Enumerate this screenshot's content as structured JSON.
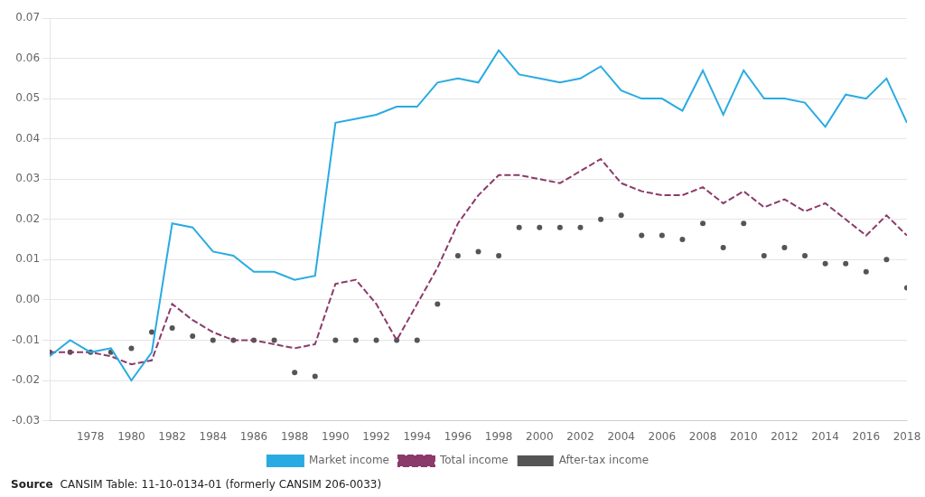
{
  "chart_data": {
    "type": "line",
    "x": [
      1976,
      1977,
      1978,
      1979,
      1980,
      1981,
      1982,
      1983,
      1984,
      1985,
      1986,
      1987,
      1988,
      1989,
      1990,
      1991,
      1992,
      1993,
      1994,
      1995,
      1996,
      1997,
      1998,
      1999,
      2000,
      2001,
      2002,
      2003,
      2004,
      2005,
      2006,
      2007,
      2008,
      2009,
      2010,
      2011,
      2012,
      2013,
      2014,
      2015,
      2016,
      2017,
      2018
    ],
    "series": [
      {
        "name": "Market income",
        "color": "#29ABE2",
        "line_style": "solid",
        "marker": "none",
        "values": [
          -0.014,
          -0.01,
          -0.013,
          -0.012,
          -0.02,
          -0.013,
          0.019,
          0.018,
          0.012,
          0.011,
          0.007,
          0.007,
          0.005,
          0.006,
          0.044,
          0.045,
          0.046,
          0.048,
          0.048,
          0.054,
          0.055,
          0.054,
          0.062,
          0.056,
          0.055,
          0.054,
          0.055,
          0.058,
          0.052,
          0.05,
          0.05,
          0.047,
          0.057,
          0.046,
          0.057,
          0.05,
          0.05,
          0.049,
          0.043,
          0.051,
          0.05,
          0.055,
          0.044
        ]
      },
      {
        "name": "Total income",
        "color": "#8B3A6B",
        "line_style": "dashed",
        "marker": "none",
        "values": [
          -0.013,
          -0.013,
          -0.013,
          -0.014,
          -0.016,
          -0.015,
          -0.001,
          -0.005,
          -0.008,
          -0.01,
          -0.01,
          -0.011,
          -0.012,
          -0.011,
          0.004,
          0.005,
          -0.001,
          -0.01,
          -0.001,
          0.008,
          0.019,
          0.026,
          0.031,
          0.031,
          0.03,
          0.029,
          0.032,
          0.035,
          0.029,
          0.027,
          0.026,
          0.026,
          0.028,
          0.024,
          0.027,
          0.023,
          0.025,
          0.022,
          0.024,
          0.02,
          0.016,
          0.021,
          0.016
        ]
      },
      {
        "name": "After-tax income",
        "color": "#555555",
        "line_style": "none",
        "marker": "circle",
        "values": [
          -0.013,
          -0.013,
          -0.013,
          -0.013,
          -0.012,
          -0.008,
          -0.007,
          -0.009,
          -0.01,
          -0.01,
          -0.01,
          -0.01,
          -0.018,
          -0.019,
          -0.01,
          -0.01,
          -0.01,
          -0.01,
          -0.01,
          -0.001,
          0.011,
          0.012,
          0.011,
          0.018,
          0.018,
          0.018,
          0.018,
          0.02,
          0.021,
          0.016,
          0.016,
          0.015,
          0.019,
          0.013,
          0.019,
          0.011,
          0.013,
          0.011,
          0.009,
          0.009,
          0.007,
          0.01,
          0.003
        ]
      }
    ],
    "xlim": [
      1976,
      2018
    ],
    "xticks": [
      1978,
      1980,
      1982,
      1984,
      1986,
      1988,
      1990,
      1992,
      1994,
      1996,
      1998,
      2000,
      2002,
      2004,
      2006,
      2008,
      2010,
      2012,
      2014,
      2016,
      2018
    ],
    "ylim": [
      -0.03,
      0.07
    ],
    "yticks": [
      -0.03,
      -0.02,
      -0.01,
      {
        "value": 0,
        "label": "0.00"
      },
      0.01,
      0.02,
      0.03,
      0.04,
      0.05,
      0.06,
      0.07
    ],
    "grid": "y",
    "legend": "bottom",
    "annotations": [
      "Source",
      "CANSIM Table: 11-10-0134-01 (formerly CANSIM 206-0033)"
    ]
  }
}
